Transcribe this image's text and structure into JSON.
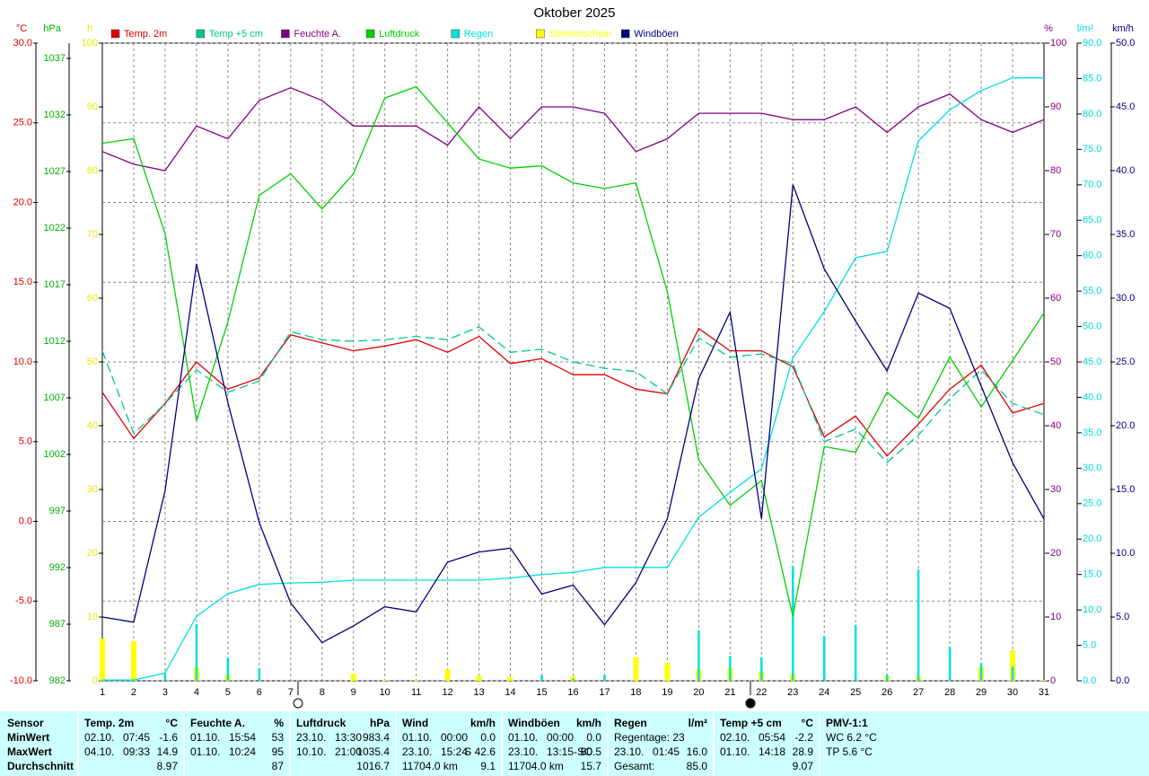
{
  "chart_data": {
    "type": "line",
    "title": "Oktober 2025",
    "grid": true,
    "categories": [
      "1",
      "2",
      "3",
      "4",
      "5",
      "6",
      "7",
      "8",
      "9",
      "10",
      "11",
      "12",
      "13",
      "14",
      "15",
      "16",
      "17",
      "18",
      "19",
      "20",
      "21",
      "22",
      "23",
      "24",
      "25",
      "26",
      "27",
      "28",
      "29",
      "30",
      "31"
    ],
    "axes": {
      "y": {
        "unit": "°C",
        "color": "#e00000",
        "ylim": [
          -10,
          30
        ],
        "yticks": [
          {
            "value": -10,
            "label": "-10.0"
          },
          {
            "value": -5,
            "label": "-5.0"
          },
          {
            "value": 0,
            "label": "0.0"
          },
          {
            "value": 5,
            "label": "5.0"
          },
          {
            "value": 10,
            "label": "10.0"
          },
          {
            "value": 15,
            "label": "15.0"
          },
          {
            "value": 20,
            "label": "20.0"
          },
          {
            "value": 25,
            "label": "25.0"
          },
          {
            "value": 30,
            "label": "30.0"
          }
        ]
      },
      "y2": {
        "unit": "hPa",
        "color": "#00b000",
        "ylim": [
          982,
          1038.35
        ],
        "yticks": [
          982,
          987,
          992,
          997,
          1002,
          1007,
          1012,
          1017,
          1022,
          1027,
          1032,
          1037
        ]
      },
      "y3": {
        "unit": "h",
        "color": "#e8e800",
        "ylim": [
          0,
          100
        ],
        "yticks": [
          0,
          10,
          20,
          30,
          40,
          50,
          60,
          70,
          80,
          90,
          100
        ]
      },
      "y4": {
        "unit": "%",
        "color": "#800080",
        "ylim": [
          0,
          100
        ],
        "yticks": [
          0,
          10,
          20,
          30,
          40,
          50,
          60,
          70,
          80,
          90,
          100
        ]
      },
      "y5": {
        "unit": "l/m²",
        "color": "#00d8d8",
        "ylim": [
          0,
          90
        ],
        "yticks": [
          {
            "value": 0,
            "label": "0.0"
          },
          {
            "value": 5,
            "label": "5.0"
          },
          {
            "value": 10,
            "label": "10.0"
          },
          {
            "value": 15,
            "label": "15.0"
          },
          {
            "value": 20,
            "label": "20.0"
          },
          {
            "value": 25,
            "label": "25.0"
          },
          {
            "value": 30,
            "label": "30.0"
          },
          {
            "value": 35,
            "label": "35.0"
          },
          {
            "value": 40,
            "label": "40.0"
          },
          {
            "value": 45,
            "label": "45.0"
          },
          {
            "value": 50,
            "label": "50.0"
          },
          {
            "value": 55,
            "label": "55.0"
          },
          {
            "value": 60,
            "label": "60.0"
          },
          {
            "value": 65,
            "label": "65.0"
          },
          {
            "value": 70,
            "label": "70.0"
          },
          {
            "value": 75,
            "label": "75.0"
          },
          {
            "value": 80,
            "label": "80.0"
          },
          {
            "value": 85,
            "label": "85.0"
          },
          {
            "value": 90,
            "label": "90.0"
          }
        ]
      },
      "y6": {
        "unit": "km/h",
        "color": "#000080",
        "ylim": [
          0,
          50
        ],
        "yticks": [
          {
            "value": 0,
            "label": "0.0"
          },
          {
            "value": 5,
            "label": "5.0"
          },
          {
            "value": 10,
            "label": "10.0"
          },
          {
            "value": 15,
            "label": "15.0"
          },
          {
            "value": 20,
            "label": "20.0"
          },
          {
            "value": 25,
            "label": "25.0"
          },
          {
            "value": 30,
            "label": "30.0"
          },
          {
            "value": 35,
            "label": "35.0"
          },
          {
            "value": 40,
            "label": "40.0"
          },
          {
            "value": 45,
            "label": "45.0"
          },
          {
            "value": 50,
            "label": "50.0"
          }
        ]
      }
    },
    "series": [
      {
        "name": "Temp. 2m",
        "color": "#e00000",
        "axis": "y",
        "type": "line",
        "values": [
          8.1,
          5.2,
          7.4,
          10.0,
          8.3,
          9.0,
          11.7,
          11.2,
          10.7,
          11.0,
          11.4,
          10.6,
          11.6,
          9.9,
          10.2,
          9.2,
          9.2,
          8.3,
          8.0,
          12.1,
          10.7,
          10.7,
          9.7,
          5.3,
          6.6,
          4.1,
          6.1,
          8.3,
          9.8,
          6.8,
          7.4
        ]
      },
      {
        "name": "Temp +5 cm",
        "color": "#00c890",
        "axis": "y",
        "type": "line",
        "dashed": true,
        "values": [
          10.7,
          5.5,
          7.4,
          9.5,
          8.1,
          8.8,
          11.9,
          11.4,
          11.3,
          11.4,
          11.6,
          11.4,
          12.2,
          10.6,
          10.8,
          10.0,
          9.6,
          9.4,
          8.0,
          11.5,
          10.3,
          10.5,
          9.9,
          5.0,
          5.8,
          3.7,
          5.4,
          7.7,
          9.5,
          7.4,
          6.7
        ]
      },
      {
        "name": "Feuchte A.",
        "color": "#800080",
        "axis": "y4",
        "type": "line",
        "values": [
          83,
          81,
          80,
          87,
          85,
          91,
          93,
          91,
          87,
          87,
          87,
          84,
          90,
          85,
          90,
          90,
          89,
          83,
          85,
          89,
          89,
          89,
          88,
          88,
          90,
          86,
          90,
          92,
          88,
          86,
          88
        ]
      },
      {
        "name": "Luftdruck",
        "color": "#00d000",
        "axis": "y2",
        "type": "line",
        "values": [
          1029.5,
          1029.9,
          1021.5,
          1005.0,
          1013.7,
          1024.9,
          1026.8,
          1023.7,
          1026.8,
          1033.5,
          1034.5,
          1031.3,
          1028.1,
          1027.3,
          1027.5,
          1026.0,
          1025.5,
          1026.0,
          1016.4,
          1001.5,
          997.5,
          999.7,
          987.7,
          1002.7,
          1002.2,
          1007.5,
          1005.2,
          1010.6,
          1006.2,
          1010.3,
          1014.5
        ]
      },
      {
        "name": "Regen",
        "color": "#00e0e0",
        "axis": "y5",
        "type": "line",
        "values": [
          0.1,
          0.1,
          1.1,
          9.1,
          12.3,
          13.6,
          13.8,
          13.9,
          14.2,
          14.2,
          14.2,
          14.2,
          14.2,
          14.5,
          15.0,
          15.3,
          16.0,
          16.0,
          16.0,
          23.1,
          26.6,
          29.9,
          45.6,
          52.1,
          59.7,
          60.6,
          76.2,
          80.6,
          83.3,
          85.1,
          85.1
        ]
      },
      {
        "name": "Sonnenschein",
        "color": "#ffff00",
        "axis": "y3",
        "type": "bar",
        "values": [
          6.6,
          6.2,
          0,
          2.1,
          1.0,
          0,
          0,
          0,
          1.1,
          0.1,
          0.1,
          1.8,
          0.8,
          0.6,
          0,
          0.7,
          0,
          3.7,
          2.8,
          1.8,
          2.0,
          1.4,
          1.1,
          0,
          0,
          0.7,
          0.7,
          0,
          2.1,
          4.8,
          0.1
        ]
      },
      {
        "name": "Windböen",
        "color": "#000080",
        "axis": "y6",
        "type": "line",
        "values": [
          5.0,
          4.6,
          14.9,
          32.7,
          21.8,
          12.4,
          6.1,
          3.0,
          4.3,
          5.8,
          5.4,
          9.3,
          10.1,
          10.4,
          6.8,
          7.5,
          4.4,
          7.7,
          12.7,
          23.7,
          28.9,
          12.7,
          38.9,
          32.3,
          28.2,
          24.3,
          30.4,
          29.2,
          23.1,
          17.1,
          12.7
        ]
      },
      {
        "color": "#00e0e0",
        "axis": "y5",
        "type": "bar",
        "values": [
          0,
          0,
          1.0,
          8.0,
          3.3,
          1.8,
          0,
          0,
          0,
          0,
          0,
          0,
          0,
          0,
          0.8,
          0.3,
          0.8,
          0,
          0,
          7.1,
          3.5,
          3.3,
          16.2,
          6.3,
          7.9,
          0.9,
          15.7,
          4.8,
          2.5,
          2.0,
          0
        ]
      }
    ]
  },
  "stats": {
    "groups": [
      {
        "header": [
          "Sensor"
        ],
        "rows": [
          {
            "left": [
              "MinWert"
            ]
          },
          {
            "left": [
              "MaxWert"
            ]
          },
          {
            "left": [
              "Durchschnitt"
            ]
          }
        ]
      },
      {
        "header": [
          "Temp. 2m",
          "°C"
        ],
        "rows": [
          {
            "left": [
              "02.10.",
              "07:45"
            ],
            "value": "-1.6"
          },
          {
            "left": [
              "04.10.",
              "09:33"
            ],
            "value": "14.9"
          },
          {
            "value": "8.97"
          }
        ]
      },
      {
        "header": [
          "Feuchte A.",
          "%"
        ],
        "rows": [
          {
            "left": [
              "01.10.",
              "15:54"
            ],
            "value": "53"
          },
          {
            "left": [
              "01.10.",
              "10:24"
            ],
            "value": "95"
          },
          {
            "value": "87"
          }
        ]
      },
      {
        "header": [
          "Luftdruck",
          "hPa"
        ],
        "rows": [
          {
            "left": [
              "23.10.",
              "13:30"
            ],
            "value": "983.4"
          },
          {
            "left": [
              "10.10.",
              "21:00"
            ],
            "value": "1035.4"
          },
          {
            "value": "1016.7"
          }
        ]
      },
      {
        "header": [
          "Wind",
          "km/h"
        ],
        "rows": [
          {
            "left": [
              "01.10.",
              "00:00"
            ],
            "value": "0.0"
          },
          {
            "left": [
              "23.10.",
              "15:24"
            ],
            "value": "S 42.6"
          },
          {
            "left": [
              "11704.0 km"
            ],
            "value": "9.1"
          }
        ]
      },
      {
        "header": [
          "Windböen",
          "km/h"
        ],
        "rows": [
          {
            "left": [
              "01.10.",
              "00:00"
            ],
            "value": "0.0"
          },
          {
            "left": [
              "23.10.",
              "13:15-SO"
            ],
            "value": "80.5"
          },
          {
            "left": [
              "11704.0 km"
            ],
            "value": "15.7"
          }
        ]
      },
      {
        "header": [
          "Regen",
          "l/m²"
        ],
        "rows": [
          {
            "left": [
              "Regentage: 23"
            ]
          },
          {
            "left": [
              "23.10.",
              "01:45"
            ],
            "value": "16.0"
          },
          {
            "left": [
              "Gesamt:"
            ],
            "value": "85.0"
          }
        ]
      },
      {
        "header": [
          "Temp +5 cm",
          "°C"
        ],
        "rows": [
          {
            "left": [
              "02.10.",
              "05:54"
            ],
            "value": "-2.2"
          },
          {
            "left": [
              "01.10.",
              "14:18"
            ],
            "value": "28.9"
          },
          {
            "value": "9.07"
          }
        ]
      },
      {
        "header": [
          "PMV-1:1"
        ],
        "rows": [
          {
            "left": [
              "WC 6.2 °C"
            ]
          },
          {
            "left": [
              "TP 5.6 °C"
            ]
          }
        ]
      }
    ]
  }
}
